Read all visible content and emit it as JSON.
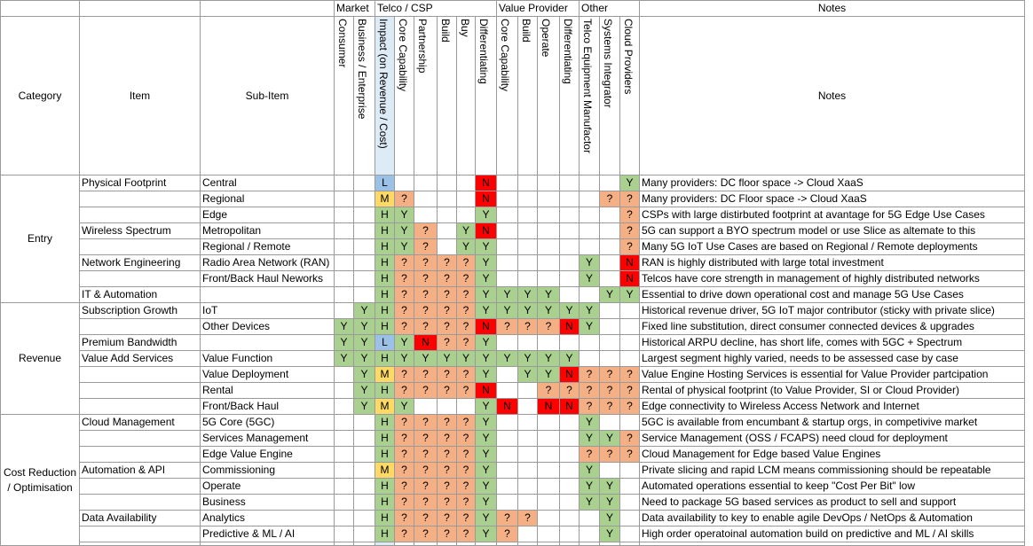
{
  "groups": [
    "Market",
    "Telco / CSP",
    "Value Provider",
    "Other",
    "Notes"
  ],
  "headers": {
    "category": "Category",
    "item": "Item",
    "subitem": "Sub-Item",
    "notes": "Notes",
    "cols": [
      "Consumer",
      "Business / Enterprise",
      "Impact (on Revenue / Cost)",
      "Core Capability",
      "Partnership",
      "Build",
      "Buy",
      "Differentiating",
      "Core Capability",
      "Build",
      "Operate",
      "Differentiating",
      "Telco Equipment Manufactor",
      "Systems Integrator",
      "Cloud Providers"
    ]
  },
  "colors": {
    "H": "#a9d08e",
    "Y": "#a9d08e",
    "N": "#ff0000",
    "M": "#ffd966",
    "L": "#9bc2e6",
    "Q": "#f4b084"
  },
  "categories": [
    "Entry",
    "Revenue",
    "Cost Reduction / Optimisation"
  ],
  "rows": [
    {
      "item": "Physical Footprint",
      "sub": "Central",
      "cells": [
        "",
        "",
        "L",
        "",
        "",
        "",
        "",
        "N",
        "",
        "",
        "",
        "",
        "",
        "",
        "Y"
      ],
      "note": "Many providers: DC floor space -> Cloud XaaS"
    },
    {
      "item": "",
      "sub": "Regional",
      "cells": [
        "",
        "",
        "M",
        "?",
        "",
        "",
        "",
        "N",
        "",
        "",
        "",
        "",
        "",
        "?",
        "?"
      ],
      "note": "Many providers: DC Floor space -> Cloud XaaS"
    },
    {
      "item": "",
      "sub": "Edge",
      "cells": [
        "",
        "",
        "H",
        "Y",
        "",
        "",
        "",
        "Y",
        "",
        "",
        "",
        "",
        "",
        "",
        "?"
      ],
      "note": "CSPs with large distirbuted footprint at avantage for 5G Edge Use Cases"
    },
    {
      "item": "Wireless Spectrum",
      "sub": "Metropolitan",
      "cells": [
        "",
        "",
        "H",
        "Y",
        "?",
        "",
        "Y",
        "N",
        "",
        "",
        "",
        "",
        "",
        "",
        "?"
      ],
      "note": "5G can support a BYO spectrum model or use Slice as altemate to this"
    },
    {
      "item": "",
      "sub": "Regional / Remote",
      "cells": [
        "",
        "",
        "H",
        "Y",
        "?",
        "",
        "Y",
        "Y",
        "",
        "",
        "",
        "",
        "",
        "",
        "?"
      ],
      "note": "Many 5G IoT Use Cases are based on Regional / Remote deployments"
    },
    {
      "item": "Network Engineering",
      "sub": "Radio Area Network (RAN)",
      "cells": [
        "",
        "",
        "H",
        "?",
        "?",
        "?",
        "?",
        "Y",
        "",
        "",
        "",
        "",
        "Y",
        "",
        "N"
      ],
      "note": "RAN is highly distributed with large total investment"
    },
    {
      "item": "",
      "sub": "Front/Back Haul Neworks",
      "cells": [
        "",
        "",
        "H",
        "?",
        "?",
        "?",
        "?",
        "Y",
        "",
        "",
        "",
        "",
        "Y",
        "",
        "N"
      ],
      "note": "Telcos have core strength in management of highly distributed networks"
    },
    {
      "item": "IT & Automation",
      "sub": "",
      "cells": [
        "",
        "",
        "H",
        "?",
        "?",
        "?",
        "?",
        "Y",
        "Y",
        "Y",
        "Y",
        "",
        "",
        "Y",
        "Y"
      ],
      "note": "Essential to drive down operational cost and manage 5G Use Cases"
    },
    {
      "item": "Subscription Growth",
      "sub": "IoT",
      "cells": [
        "",
        "Y",
        "H",
        "?",
        "?",
        "?",
        "?",
        "Y",
        "Y",
        "Y",
        "Y",
        "Y",
        "Y",
        "",
        ""
      ],
      "note": "Historical revenue driver, 5G IoT major contributor (sticky with private slice)"
    },
    {
      "item": "",
      "sub": "Other Devices",
      "cells": [
        "Y",
        "Y",
        "H",
        "?",
        "?",
        "?",
        "?",
        "N",
        "?",
        "?",
        "?",
        "N",
        "Y",
        "",
        ""
      ],
      "note": "Fixed line substitution, direct consumer connected devices & upgrades"
    },
    {
      "item": "Premium Bandwidth",
      "sub": "",
      "cells": [
        "Y",
        "Y",
        "L",
        "Y",
        "N",
        "?",
        "?",
        "Y",
        "",
        "",
        "",
        "",
        "",
        "",
        ""
      ],
      "note": "Historical ARPU decline, has short life, comes with 5GC + Spectrum"
    },
    {
      "item": "Value Add Services",
      "sub": "Value Function",
      "cells": [
        "Y",
        "Y",
        "H",
        "Y",
        "Y",
        "Y",
        "Y",
        "Y",
        "Y",
        "Y",
        "Y",
        "Y",
        "",
        "",
        ""
      ],
      "note": "Largest segment highly varied, needs to be assessed case by case"
    },
    {
      "item": "",
      "sub": "Value Deployment",
      "cells": [
        "",
        "Y",
        "M",
        "?",
        "?",
        "?",
        "?",
        "Y",
        "",
        "Y",
        "Y",
        "N",
        "?",
        "?",
        "?"
      ],
      "note": "Value Engine Hosting Services is essential for Value Provider partcipation"
    },
    {
      "item": "",
      "sub": "Rental",
      "cells": [
        "",
        "Y",
        "H",
        "?",
        "?",
        "?",
        "?",
        "N",
        "",
        "",
        "?",
        "?",
        "?",
        "?",
        "?"
      ],
      "note": "Rental of physical footprint (to Value Provider, SI or Cloud Provider)"
    },
    {
      "item": "",
      "sub": "Front/Back Haul",
      "cells": [
        "",
        "Y",
        "M",
        "Y",
        "",
        "",
        "",
        "Y",
        "N",
        "",
        "N",
        "N",
        "?",
        "?",
        "?"
      ],
      "note": "Edge connectivity to Wireless Access Network and Internet"
    },
    {
      "item": "Cloud Management",
      "sub": "5G Core (5GC)",
      "cells": [
        "",
        "",
        "H",
        "?",
        "?",
        "?",
        "?",
        "Y",
        "",
        "",
        "",
        "",
        "Y",
        "",
        ""
      ],
      "note": "5GC is available from encumbant & startup orgs, in competivive market"
    },
    {
      "item": "",
      "sub": "Services Management",
      "cells": [
        "",
        "",
        "H",
        "?",
        "?",
        "?",
        "?",
        "Y",
        "",
        "",
        "",
        "",
        "Y",
        "Y",
        "?"
      ],
      "note": "Service Management (OSS / FCAPS) need cloud for deployment"
    },
    {
      "item": "",
      "sub": "Edge Value Engine",
      "cells": [
        "",
        "",
        "H",
        "?",
        "?",
        "?",
        "?",
        "Y",
        "",
        "",
        "",
        "",
        "?",
        "?",
        "?"
      ],
      "note": "Cloud Management for Edge based Value Engines"
    },
    {
      "item": "Automation & API",
      "sub": "Commissioning",
      "cells": [
        "",
        "",
        "M",
        "?",
        "?",
        "?",
        "?",
        "Y",
        "",
        "",
        "",
        "",
        "Y",
        "",
        ""
      ],
      "note": "Private slicing and rapid LCM means commissioning should be repeatable"
    },
    {
      "item": "",
      "sub": "Operate",
      "cells": [
        "",
        "",
        "H",
        "?",
        "?",
        "?",
        "?",
        "Y",
        "",
        "",
        "",
        "",
        "Y",
        "Y",
        ""
      ],
      "note": "Automated operations essential to keep \"Cost Per Bit\" low"
    },
    {
      "item": "",
      "sub": "Business",
      "cells": [
        "",
        "",
        "H",
        "?",
        "?",
        "?",
        "?",
        "Y",
        "",
        "",
        "",
        "",
        "Y",
        "Y",
        ""
      ],
      "note": "Need to package 5G based services as product to sell and support"
    },
    {
      "item": "Data Availability",
      "sub": "Analytics",
      "cells": [
        "",
        "",
        "H",
        "?",
        "?",
        "?",
        "?",
        "Y",
        "?",
        "?",
        "",
        "",
        "",
        "Y",
        ""
      ],
      "note": "Data availability to key to enable agile DevOps / NetOps & Automation"
    },
    {
      "item": "",
      "sub": "Predictive & ML / AI",
      "cells": [
        "",
        "",
        "H",
        "?",
        "?",
        "?",
        "?",
        "Y",
        "?",
        "",
        "",
        "",
        "",
        "Y",
        ""
      ],
      "note": "High order operatoinal automation build on predictive and ML / AI skills"
    }
  ]
}
